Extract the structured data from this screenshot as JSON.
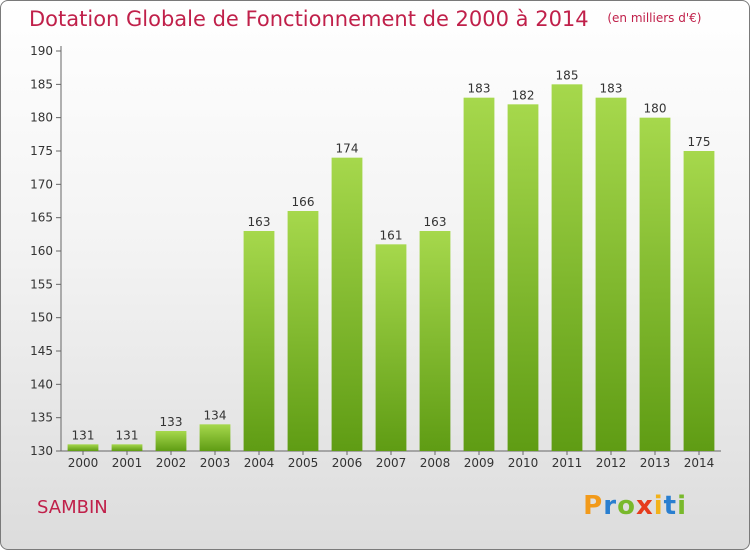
{
  "chart_data": {
    "type": "bar",
    "title": "Dotation Globale de Fonctionnement de 2000 à 2014",
    "subtitle": "(en milliers d'€)",
    "xlabel": "",
    "ylabel": "",
    "categories": [
      "2000",
      "2001",
      "2002",
      "2003",
      "2004",
      "2005",
      "2006",
      "2007",
      "2008",
      "2009",
      "2010",
      "2011",
      "2012",
      "2013",
      "2014"
    ],
    "values": [
      131,
      131,
      133,
      134,
      163,
      166,
      174,
      161,
      163,
      183,
      182,
      185,
      183,
      180,
      175
    ],
    "ylim": [
      130,
      190
    ],
    "yticks": [
      130,
      135,
      140,
      145,
      150,
      155,
      160,
      165,
      170,
      175,
      180,
      185,
      190
    ],
    "grid": false,
    "legend": "none",
    "colors": {
      "bar_light": "#a6d84c",
      "bar_dark": "#5f9c14",
      "title": "#c0204a",
      "axis": "#666666"
    }
  },
  "commune": "SAMBIN",
  "logo": {
    "letters": [
      "P",
      "r",
      "o",
      "x",
      "i",
      "t",
      "i"
    ],
    "colors": [
      "#f29a1a",
      "#2a7fd0",
      "#79b92c",
      "#e63b1c",
      "#f2b21a",
      "#2a7fd0",
      "#79b92c"
    ],
    "icon": "proxiti-logo"
  }
}
